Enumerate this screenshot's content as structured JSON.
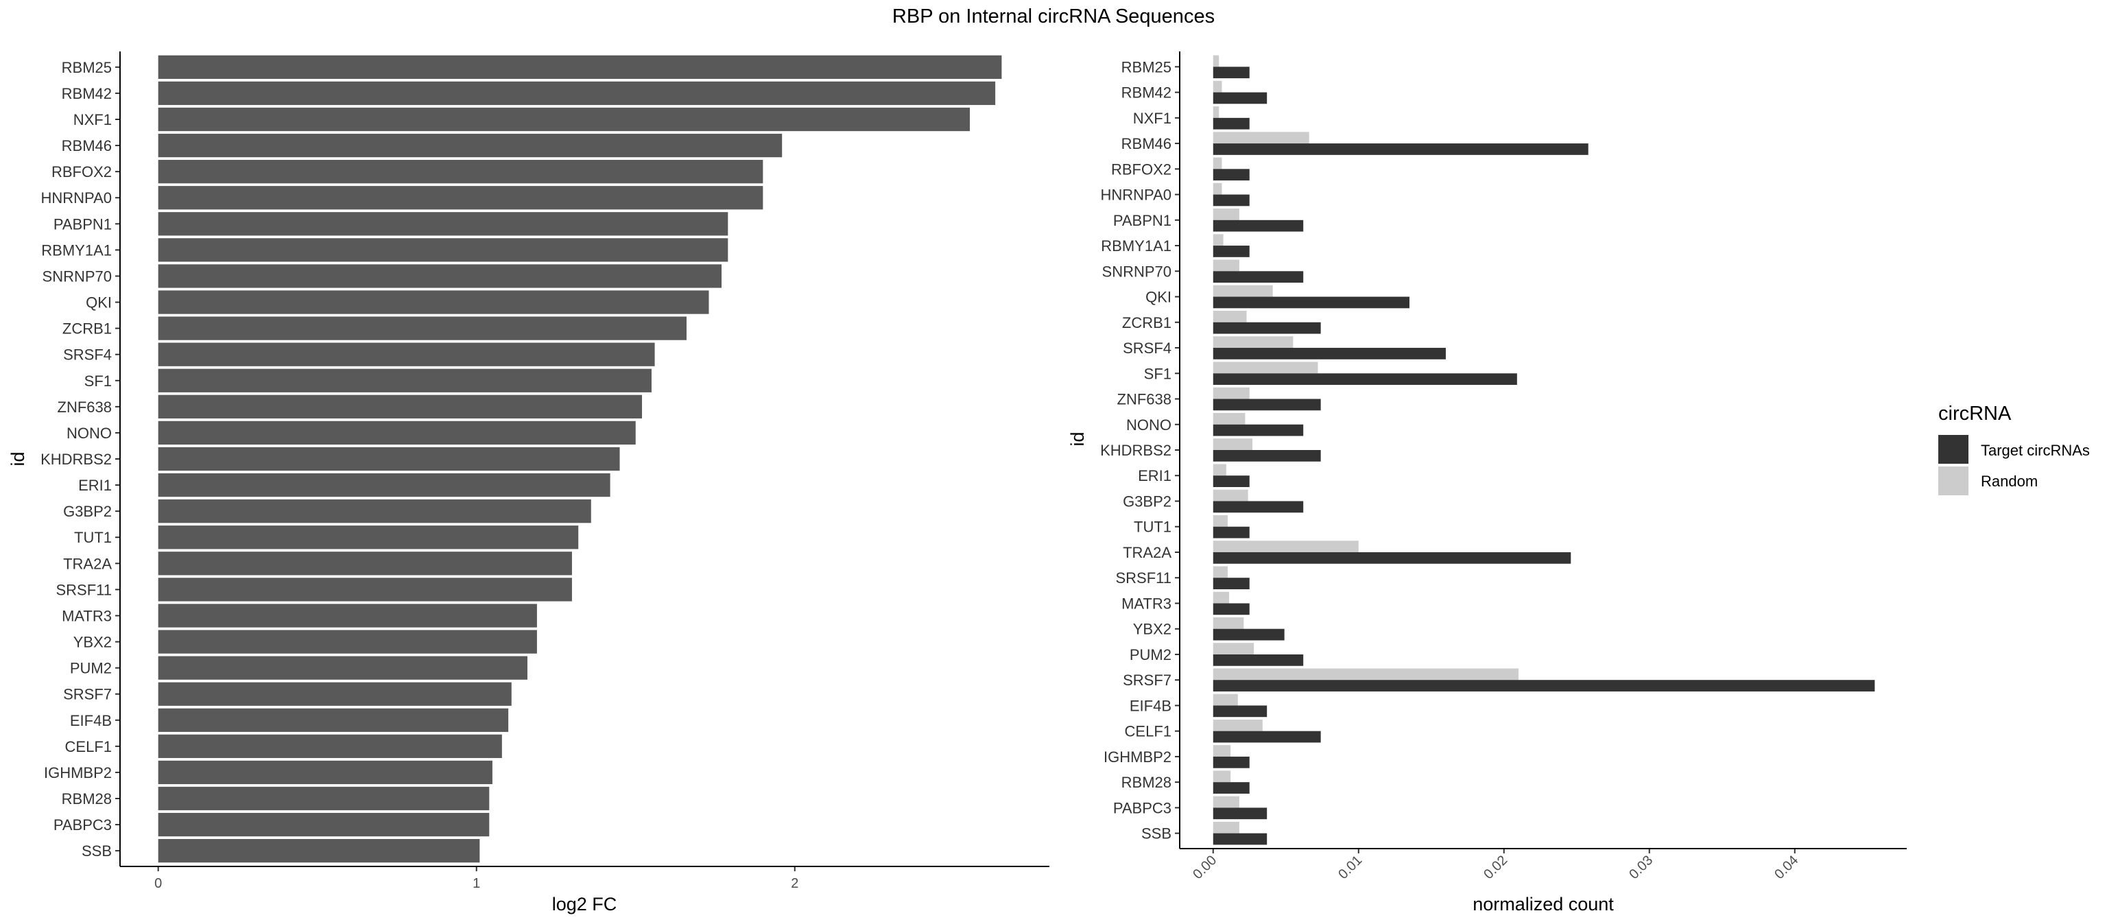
{
  "title": "RBP on Internal circRNA Sequences",
  "colors": {
    "dark_bar": "#595959",
    "target": "#333333",
    "random": "#cccccc",
    "axis": "#000000",
    "text": "#333333"
  },
  "chart_data": [
    {
      "type": "bar",
      "orientation": "horizontal",
      "xlabel": "log2 FC",
      "ylabel": "id",
      "xlim": [
        -0.12,
        2.8
      ],
      "xticks": [
        0,
        1,
        2
      ],
      "grid": false,
      "categories": [
        "RBM25",
        "RBM42",
        "NXF1",
        "RBM46",
        "RBFOX2",
        "HNRNPA0",
        "PABPN1",
        "RBMY1A1",
        "SNRNP70",
        "QKI",
        "ZCRB1",
        "SRSF4",
        "SF1",
        "ZNF638",
        "NONO",
        "KHDRBS2",
        "ERI1",
        "G3BP2",
        "TUT1",
        "TRA2A",
        "SRSF11",
        "MATR3",
        "YBX2",
        "PUM2",
        "SRSF7",
        "EIF4B",
        "CELF1",
        "IGHMBP2",
        "RBM28",
        "PABPC3",
        "SSB"
      ],
      "values": [
        2.65,
        2.63,
        2.55,
        1.96,
        1.9,
        1.9,
        1.79,
        1.79,
        1.77,
        1.73,
        1.66,
        1.56,
        1.55,
        1.52,
        1.5,
        1.45,
        1.42,
        1.36,
        1.32,
        1.3,
        1.3,
        1.19,
        1.19,
        1.16,
        1.11,
        1.1,
        1.08,
        1.05,
        1.04,
        1.04,
        1.01
      ]
    },
    {
      "type": "bar",
      "orientation": "horizontal",
      "xlabel": "normalized count",
      "ylabel": "id",
      "xlim": [
        -0.0023,
        0.0477
      ],
      "xticks": [
        "0.00",
        "0.01",
        "0.02",
        "0.03",
        "0.04"
      ],
      "xtick_values": [
        0,
        0.01,
        0.02,
        0.03,
        0.04
      ],
      "grid": false,
      "legend": {
        "title": "circRNA",
        "position": "right",
        "entries": [
          "Target circRNAs",
          "Random"
        ]
      },
      "categories": [
        "RBM25",
        "RBM42",
        "NXF1",
        "RBM46",
        "RBFOX2",
        "HNRNPA0",
        "PABPN1",
        "RBMY1A1",
        "SNRNP70",
        "QKI",
        "ZCRB1",
        "SRSF4",
        "SF1",
        "ZNF638",
        "NONO",
        "KHDRBS2",
        "ERI1",
        "G3BP2",
        "TUT1",
        "TRA2A",
        "SRSF11",
        "MATR3",
        "YBX2",
        "PUM2",
        "SRSF7",
        "EIF4B",
        "CELF1",
        "IGHMBP2",
        "RBM28",
        "PABPC3",
        "SSB"
      ],
      "series": [
        {
          "name": "Random",
          "values": [
            0.0004,
            0.0006,
            0.0004,
            0.0066,
            0.0006,
            0.0006,
            0.0018,
            0.0007,
            0.0018,
            0.0041,
            0.0023,
            0.0055,
            0.0072,
            0.0025,
            0.0022,
            0.0027,
            0.0009,
            0.0024,
            0.001,
            0.01,
            0.001,
            0.0011,
            0.0021,
            0.0028,
            0.021,
            0.0017,
            0.0034,
            0.0012,
            0.0012,
            0.0018,
            0.0018
          ]
        },
        {
          "name": "Target circRNAs",
          "values": [
            0.0025,
            0.0037,
            0.0025,
            0.0258,
            0.0025,
            0.0025,
            0.0062,
            0.0025,
            0.0062,
            0.0135,
            0.0074,
            0.016,
            0.0209,
            0.0074,
            0.0062,
            0.0074,
            0.0025,
            0.0062,
            0.0025,
            0.0246,
            0.0025,
            0.0025,
            0.0049,
            0.0062,
            0.0455,
            0.0037,
            0.0074,
            0.0025,
            0.0025,
            0.0037,
            0.0037
          ]
        }
      ]
    }
  ]
}
